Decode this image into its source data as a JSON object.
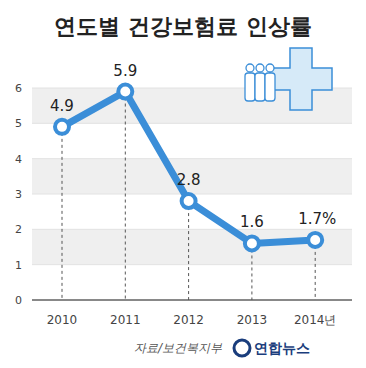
{
  "chart_data": {
    "type": "line",
    "title": "연도별 건강보험료 인상률",
    "categories": [
      "2010",
      "2011",
      "2012",
      "2013",
      "2014년"
    ],
    "values": [
      4.9,
      5.9,
      2.8,
      1.6,
      1.7
    ],
    "value_labels": [
      "4.9",
      "5.9",
      "2.8",
      "1.6",
      "1.7%"
    ],
    "data_labels": true,
    "color": "#3b8ed8",
    "marker": "circle",
    "ylim": [
      0,
      6
    ],
    "yticks": [
      0,
      1,
      2,
      3,
      4,
      5,
      6
    ],
    "grid": true,
    "annotations": [
      "자료/보건복지부",
      "연합뉴스"
    ]
  }
}
